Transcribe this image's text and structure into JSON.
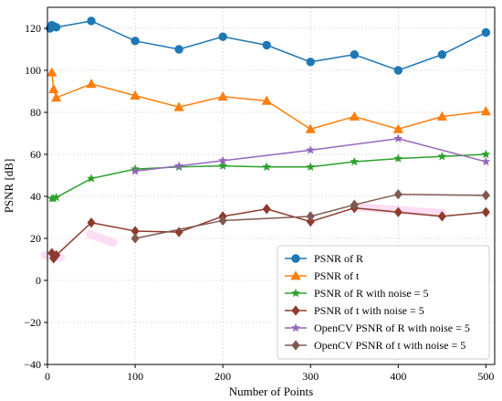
{
  "chart_data": {
    "type": "line",
    "title": "",
    "xlabel": "Number of Points",
    "ylabel": "PSNR [dB]",
    "xlim": [
      0,
      510
    ],
    "ylim": [
      -40,
      130
    ],
    "xticks": [
      0,
      100,
      200,
      300,
      400,
      500
    ],
    "yticks": [
      -40,
      -20,
      0,
      20,
      40,
      60,
      80,
      100,
      120
    ],
    "grid": true,
    "legend_position": "bottom-right",
    "series": [
      {
        "name": "PSNR of R",
        "color": "#1f77b4",
        "marker": "circle",
        "x": [
          3,
          5,
          7,
          10,
          50,
          100,
          150,
          200,
          250,
          300,
          350,
          400,
          450,
          500
        ],
        "y": [
          120,
          121.5,
          121,
          120.5,
          123.5,
          114,
          110,
          116,
          112,
          104,
          107.5,
          100,
          107.5,
          118
        ]
      },
      {
        "name": "PSNR of t",
        "color": "#ff7f0e",
        "marker": "triangle",
        "x": [
          5,
          7,
          10,
          50,
          100,
          150,
          200,
          250,
          300,
          350,
          400,
          450,
          500
        ],
        "y": [
          99,
          91,
          87,
          93.5,
          88,
          82.5,
          87.5,
          85.5,
          72,
          78,
          72,
          78,
          80.5
        ]
      },
      {
        "name": "PSNR of R with noise = 5",
        "color": "#2ca02c",
        "marker": "star",
        "x": [
          5,
          7,
          10,
          50,
          100,
          150,
          200,
          250,
          300,
          350,
          400,
          450,
          500
        ],
        "y": [
          39,
          39,
          39.5,
          48.5,
          53,
          54,
          54.5,
          54,
          54,
          56.5,
          58,
          59,
          60
        ]
      },
      {
        "name": "PSNR of t with noise = 5",
        "color": "#8c3b2d",
        "marker": "diamond",
        "x": [
          5,
          7,
          10,
          50,
          100,
          150,
          200,
          250,
          300,
          350,
          400,
          450,
          500
        ],
        "y": [
          13,
          10.5,
          12,
          27.5,
          23.5,
          23,
          30.5,
          34,
          28,
          34.5,
          32.5,
          30.5,
          32.5
        ]
      },
      {
        "name": "OpenCV PSNR of R with noise = 5",
        "color": "#9467bd",
        "marker": "star",
        "x": [
          100,
          150,
          200,
          300,
          400,
          500
        ],
        "y": [
          52,
          54.5,
          57,
          62,
          67.5,
          56.5
        ]
      },
      {
        "name": "OpenCV PSNR of t with noise = 5",
        "color": "#7f5a50",
        "marker": "diamond",
        "x": [
          100,
          200,
          300,
          350,
          400,
          500
        ],
        "y": [
          20,
          28.5,
          30.5,
          36,
          41,
          40.5
        ]
      }
    ]
  }
}
